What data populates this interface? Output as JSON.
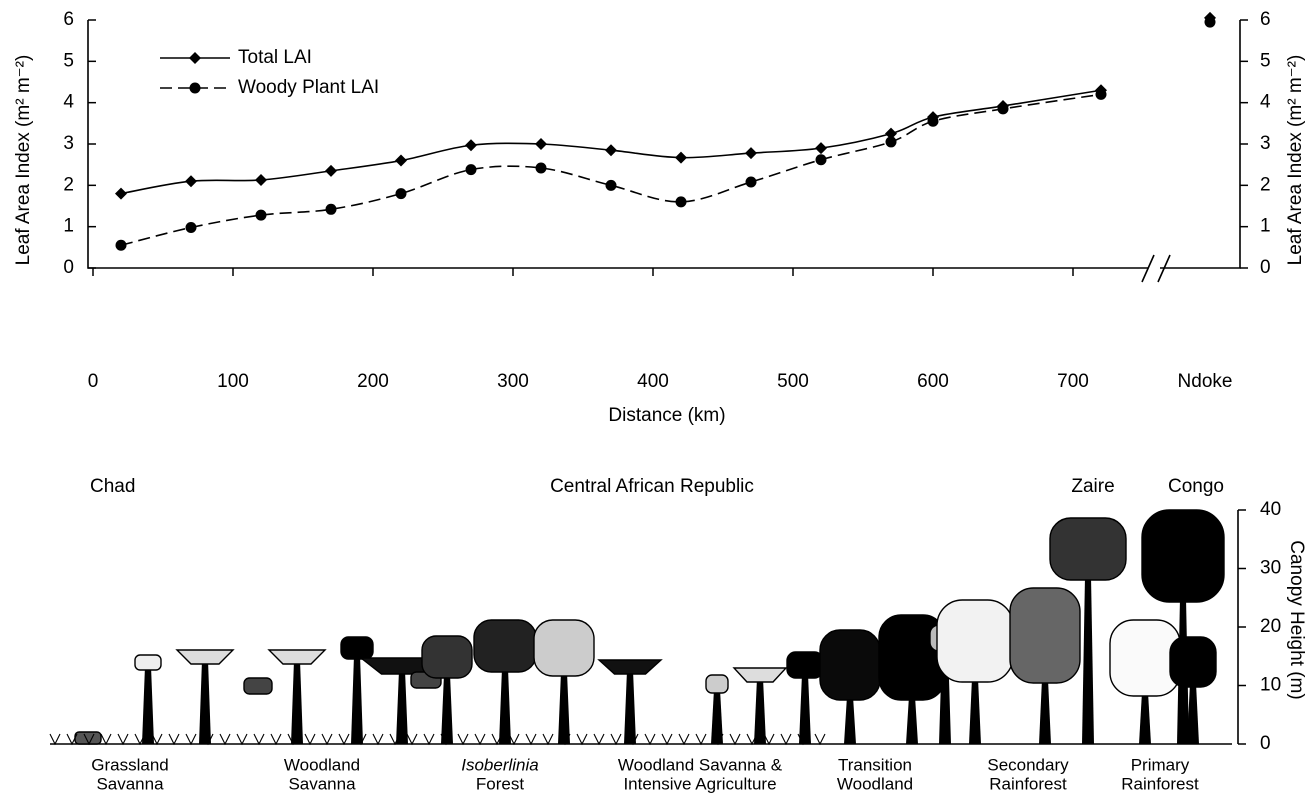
{
  "chart_data": {
    "type": "line",
    "x_label": "Distance (km)",
    "y_label": "Leaf Area Index (m² m⁻²)",
    "y2_label": "Leaf Area Index (m² m⁻²)",
    "x": [
      20,
      70,
      120,
      170,
      220,
      270,
      320,
      370,
      420,
      470,
      520,
      570,
      600,
      650,
      720
    ],
    "series": [
      {
        "name": "Total LAI",
        "color": "#000000",
        "marker": "diamond",
        "dash": false,
        "values": [
          1.8,
          2.1,
          2.13,
          2.35,
          2.6,
          2.97,
          3.0,
          2.85,
          2.67,
          2.78,
          2.9,
          3.25,
          3.65,
          3.92,
          4.3
        ],
        "ndoke": 6.05
      },
      {
        "name": "Woody Plant LAI",
        "color": "#000000",
        "marker": "circle",
        "dash": true,
        "values": [
          0.55,
          0.98,
          1.28,
          1.42,
          1.8,
          2.38,
          2.42,
          2.0,
          1.6,
          2.08,
          2.62,
          3.05,
          3.55,
          3.85,
          4.2
        ],
        "ndoke": 5.95
      }
    ],
    "break_label": "Ndoke",
    "xlim": [
      0,
      750
    ],
    "xticks": [
      0,
      100,
      200,
      300,
      400,
      500,
      600,
      700
    ],
    "ylim": [
      0,
      6
    ],
    "yticks": [
      0,
      1,
      2,
      3,
      4,
      5,
      6
    ],
    "y2lim": [
      0,
      6
    ],
    "y2ticks": [
      0,
      1,
      2,
      3,
      4,
      5,
      6
    ],
    "legend": "upper left",
    "grid": false
  },
  "illustration": {
    "countries": [
      "Chad",
      "Central African Republic",
      "Zaire",
      "Congo"
    ],
    "zones": [
      [
        "Grassland",
        "Savanna"
      ],
      [
        "Woodland",
        "Savanna"
      ],
      [
        "Isoberlinia",
        "Forest"
      ],
      [
        "Woodland Savanna &",
        "Intensive Agriculture"
      ],
      [
        "Transition",
        "Woodland"
      ],
      [
        "Secondary",
        "Rainforest"
      ],
      [
        "Primary",
        "Rainforest"
      ]
    ],
    "height_label": "Canopy Height (m)",
    "ylim": [
      0,
      40
    ],
    "yticks": [
      0,
      10,
      20,
      30,
      40
    ]
  }
}
